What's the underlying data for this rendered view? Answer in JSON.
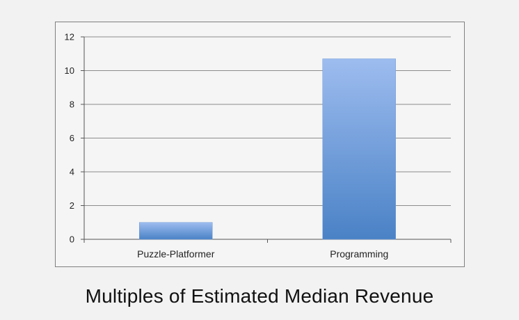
{
  "chart_data": {
    "type": "bar",
    "title": "Multiples of Estimated Median Revenue",
    "xlabel": "",
    "ylabel": "",
    "categories": [
      "Puzzle-Platformer",
      "Programming"
    ],
    "values": [
      1,
      10.7
    ],
    "ylim": [
      0,
      12
    ],
    "yticks": [
      "0",
      "2",
      "4",
      "6",
      "8",
      "10",
      "12"
    ],
    "grid": true,
    "legend": "none",
    "colors": {
      "bar_top": "#9dbcef",
      "bar_bottom": "#4a82c6",
      "grid": "#8c8c8c",
      "axis": "#555555",
      "background": "#f5f5f5"
    }
  }
}
